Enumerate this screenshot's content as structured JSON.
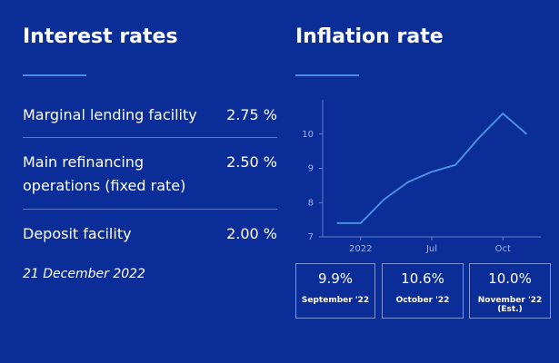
{
  "interest_rates": {
    "title": "Interest rates",
    "rows": [
      {
        "label": "Marginal lending facility",
        "value": "2.75 %"
      },
      {
        "label": "Main refinancing operations (fixed rate)",
        "value": "2.50 %"
      },
      {
        "label": "Deposit facility",
        "value": "2.00 %"
      }
    ],
    "date": "21 December 2022"
  },
  "inflation": {
    "title": "Inflation rate",
    "boxes": [
      {
        "value": "9.9%",
        "label": "September '22"
      },
      {
        "value": "10.6%",
        "label": "October '22"
      },
      {
        "value": "10.0%",
        "label": "November '22 (Est.)"
      }
    ]
  },
  "chart_data": {
    "type": "line",
    "color": "#4a90e2",
    "x": [
      0,
      1,
      2,
      3,
      4,
      5,
      6,
      7,
      8
    ],
    "values": [
      7.4,
      7.4,
      8.1,
      8.6,
      8.9,
      9.1,
      9.9,
      10.6,
      10.0
    ],
    "xlim": [
      -0.6,
      8.6
    ],
    "xticks": [
      {
        "value": 1,
        "label": "2022"
      },
      {
        "value": 4,
        "label": "Jul"
      },
      {
        "value": 7,
        "label": "Oct"
      }
    ],
    "ylim": [
      7,
      11
    ],
    "yticks": [
      7,
      8,
      9,
      10
    ]
  }
}
